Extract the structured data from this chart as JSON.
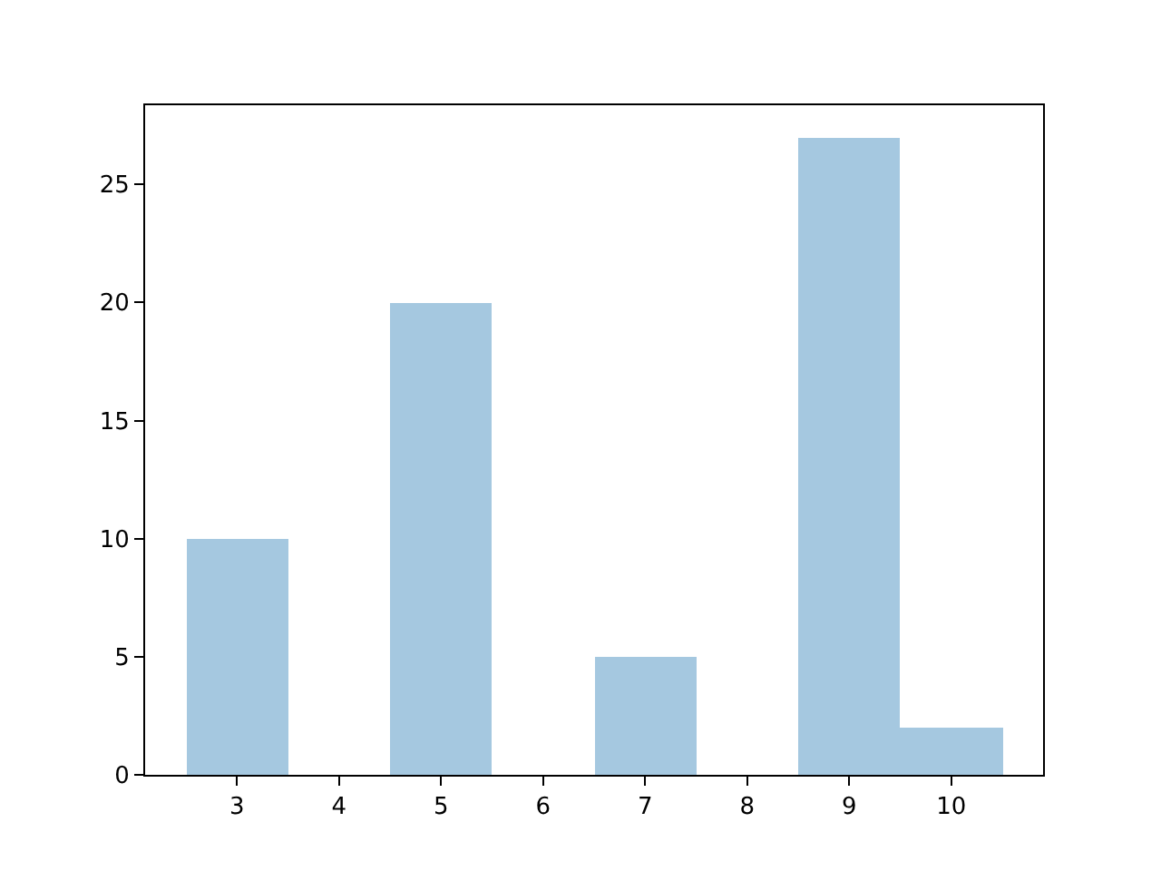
{
  "chart_data": {
    "type": "histogram",
    "bins": [
      2.5,
      3.5,
      4.5,
      5.5,
      6.5,
      7.5,
      8.5,
      9.5,
      10.5
    ],
    "values": [
      10,
      0,
      20,
      0,
      5,
      0,
      27,
      2
    ],
    "color": "#a5c8e0",
    "xlim": [
      2.1,
      10.9
    ],
    "xticks": [
      3,
      4,
      5,
      6,
      7,
      8,
      9,
      10
    ],
    "ylim": [
      0,
      28.35
    ],
    "yticks": [
      0,
      5,
      10,
      15,
      20,
      25
    ]
  }
}
